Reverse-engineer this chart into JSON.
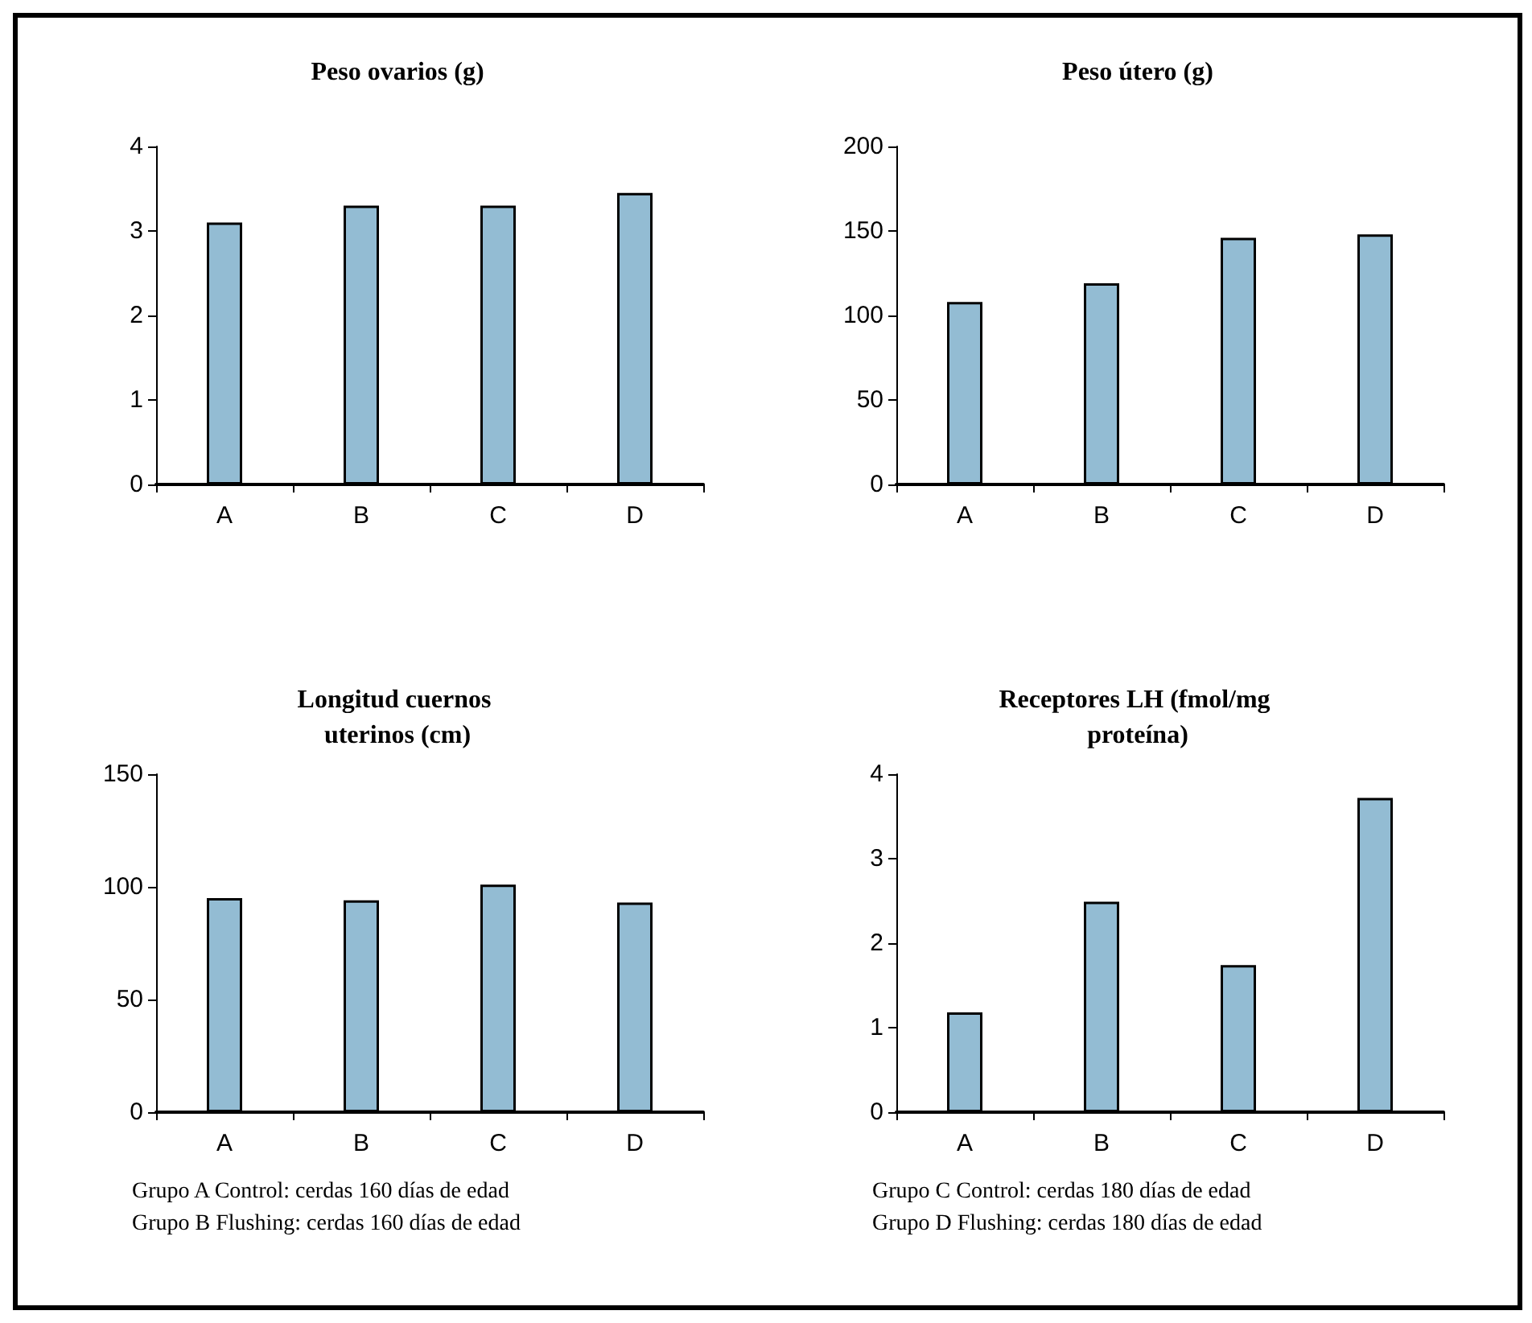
{
  "chart_data": [
    {
      "type": "bar",
      "title": "Peso ovarios (g)",
      "categories": [
        "A",
        "B",
        "C",
        "D"
      ],
      "values": [
        3.1,
        3.3,
        3.3,
        3.45
      ],
      "color": "#93bcd3",
      "ylim": [
        0,
        4
      ],
      "yticks": [
        0,
        1,
        2,
        3,
        4
      ],
      "grid": false
    },
    {
      "type": "bar",
      "title": "Peso útero (g)",
      "categories": [
        "A",
        "B",
        "C",
        "D"
      ],
      "values": [
        108,
        119,
        146,
        148
      ],
      "color": "#93bcd3",
      "ylim": [
        0,
        200
      ],
      "yticks": [
        0,
        50,
        100,
        150,
        200
      ],
      "grid": false
    },
    {
      "type": "bar",
      "title": "Longitud cuernos uterinos (cm)",
      "categories": [
        "A",
        "B",
        "C",
        "D"
      ],
      "values": [
        95,
        94,
        101,
        93
      ],
      "color": "#93bcd3",
      "ylim": [
        0,
        150
      ],
      "yticks": [
        0,
        50,
        100,
        150
      ],
      "grid": false,
      "annotations": [
        "Grupo A Control: cerdas 160 días de edad",
        "Grupo B Flushing: cerdas 160 días de edad"
      ]
    },
    {
      "type": "bar",
      "title": "Receptores LH (fmol/mg proteína)",
      "categories": [
        "A",
        "B",
        "C",
        "D"
      ],
      "values": [
        1.18,
        2.49,
        1.74,
        3.72
      ],
      "color": "#93bcd3",
      "ylim": [
        0,
        4
      ],
      "yticks": [
        0,
        1,
        2,
        3,
        4
      ],
      "grid": false,
      "annotations": [
        "Grupo C Control: cerdas 180 días de edad",
        "Grupo D Flushing: cerdas 180 días de edad"
      ]
    }
  ]
}
